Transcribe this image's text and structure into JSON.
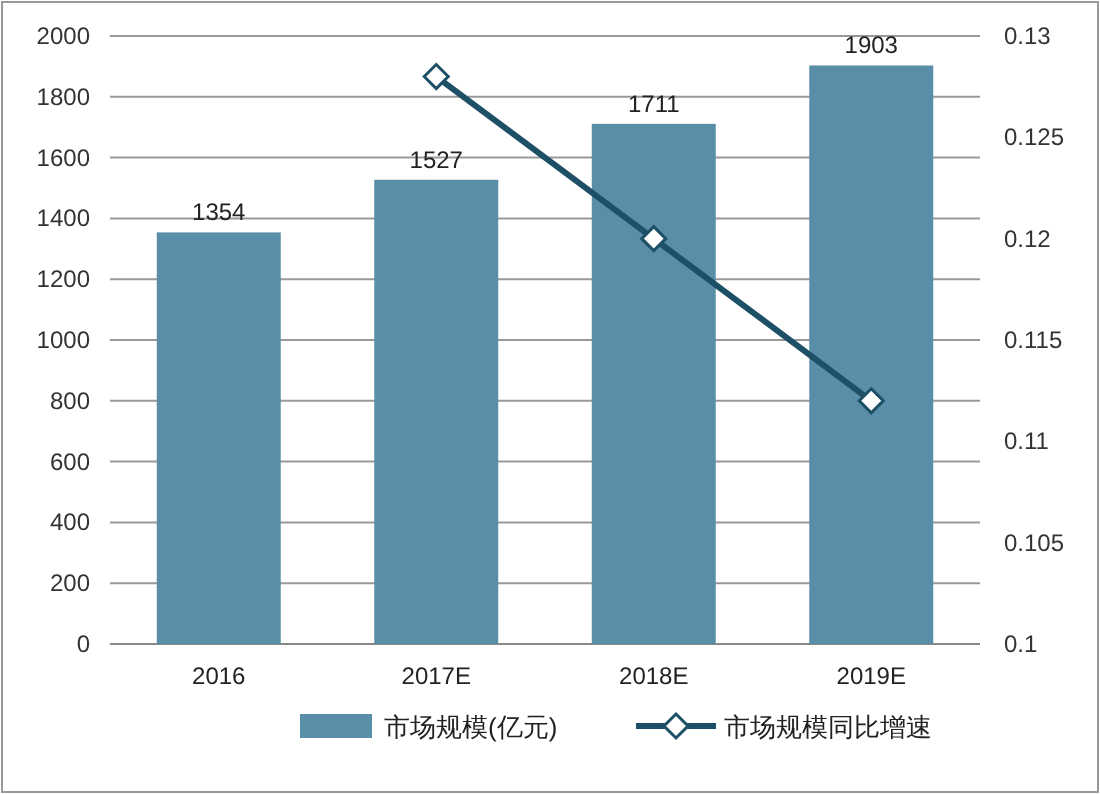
{
  "chart_data": {
    "type": "bar",
    "categories": [
      "2016",
      "2017E",
      "2018E",
      "2019E"
    ],
    "series": [
      {
        "name": "市场规模(亿元)",
        "color": "#5a8ea8",
        "values": [
          1354,
          1527,
          1711,
          1903
        ],
        "value_labels": [
          "1354",
          "1527",
          "1711",
          "1903"
        ]
      },
      {
        "name": "市场规模同比增速",
        "type": "line",
        "axis": "y2",
        "color": "#1d4f66",
        "marker": "diamond",
        "values": [
          null,
          0.128,
          0.12,
          0.112
        ]
      }
    ],
    "ylim": [
      0,
      2000
    ],
    "yticks": [
      0,
      200,
      400,
      600,
      800,
      1000,
      1200,
      1400,
      1600,
      1800,
      2000
    ],
    "y2lim": [
      0.1,
      0.13
    ],
    "y2ticks": [
      0.1,
      0.105,
      0.11,
      0.115,
      0.12,
      0.125,
      0.13
    ],
    "grid": "y",
    "legend": "bottom"
  }
}
